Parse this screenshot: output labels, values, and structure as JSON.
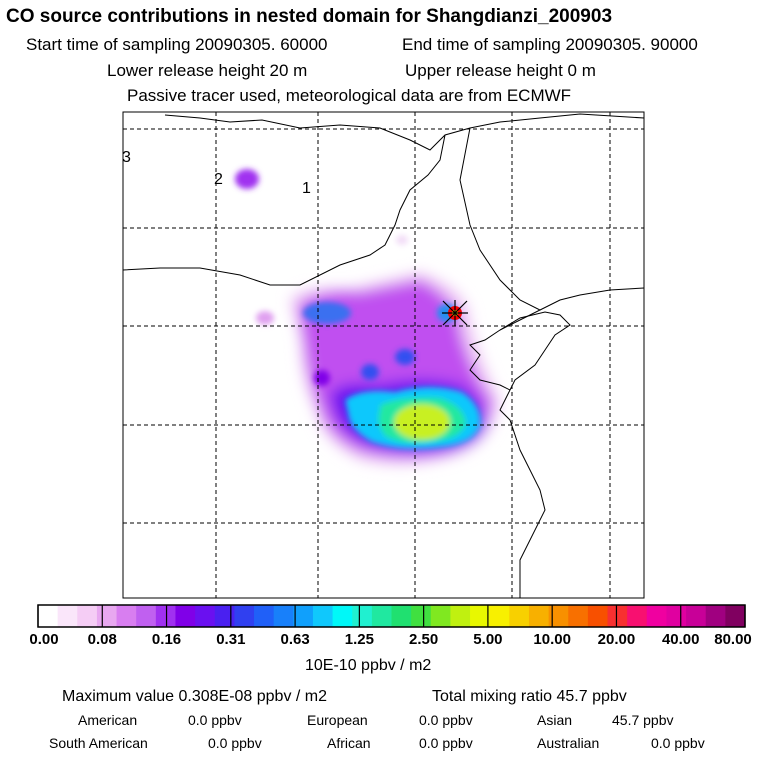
{
  "header": {
    "title": "CO  source contributions in nested domain for Shangdianzi_200903",
    "start_time": "Start time of sampling 20090305. 60000",
    "end_time": "End time of sampling 20090305. 90000",
    "lower_height": "Lower release height   20 m",
    "upper_height": "Upper release height    0 m",
    "tracer_note": "Passive tracer used, meteorological data are from ECMWF"
  },
  "map": {
    "domain_labels": [
      "1",
      "2",
      "3"
    ],
    "marker_color": "#ff0000"
  },
  "chart_data": {
    "type": "heatmap",
    "colorbar_ticks": [
      "0.00",
      "0.08",
      "0.16",
      "0.31",
      "0.63",
      "1.25",
      "2.50",
      "5.00",
      "10.00",
      "20.00",
      "40.00",
      "80.00"
    ],
    "colorbar_colors": [
      "#ffffff",
      "#fae6fa",
      "#f5cdf5",
      "#e8a8f0",
      "#d87ef0",
      "#c060f0",
      "#a030f0",
      "#8000e8",
      "#6a10f0",
      "#4a20f0",
      "#3040f0",
      "#2060f8",
      "#1880fa",
      "#10a0fc",
      "#10c8fc",
      "#00f8f8",
      "#20f0d0",
      "#20e8a0",
      "#20e070",
      "#40e040",
      "#80e820",
      "#c0f010",
      "#e8f800",
      "#f8f000",
      "#f8d000",
      "#f8b000",
      "#f89000",
      "#f87000",
      "#f85000",
      "#f83030",
      "#f81070",
      "#f000a0",
      "#e000a0",
      "#c80098",
      "#a00080",
      "#800060"
    ],
    "unit": "10E-10 ppbv / m2"
  },
  "stats": {
    "max_value": "Maximum value  0.308E-08 ppbv / m2",
    "total_mixing": "Total mixing ratio       45.7 ppbv",
    "american_label": "American",
    "american_value": "0.0 ppbv",
    "european_label": "European",
    "european_value": "0.0 ppbv",
    "asian_label": "Asian",
    "asian_value": "45.7 ppbv",
    "south_american_label": "South American",
    "south_american_value": "0.0 ppbv",
    "african_label": "African",
    "african_value": "0.0 ppbv",
    "australian_label": "Australian",
    "australian_value": "0.0 ppbv"
  }
}
